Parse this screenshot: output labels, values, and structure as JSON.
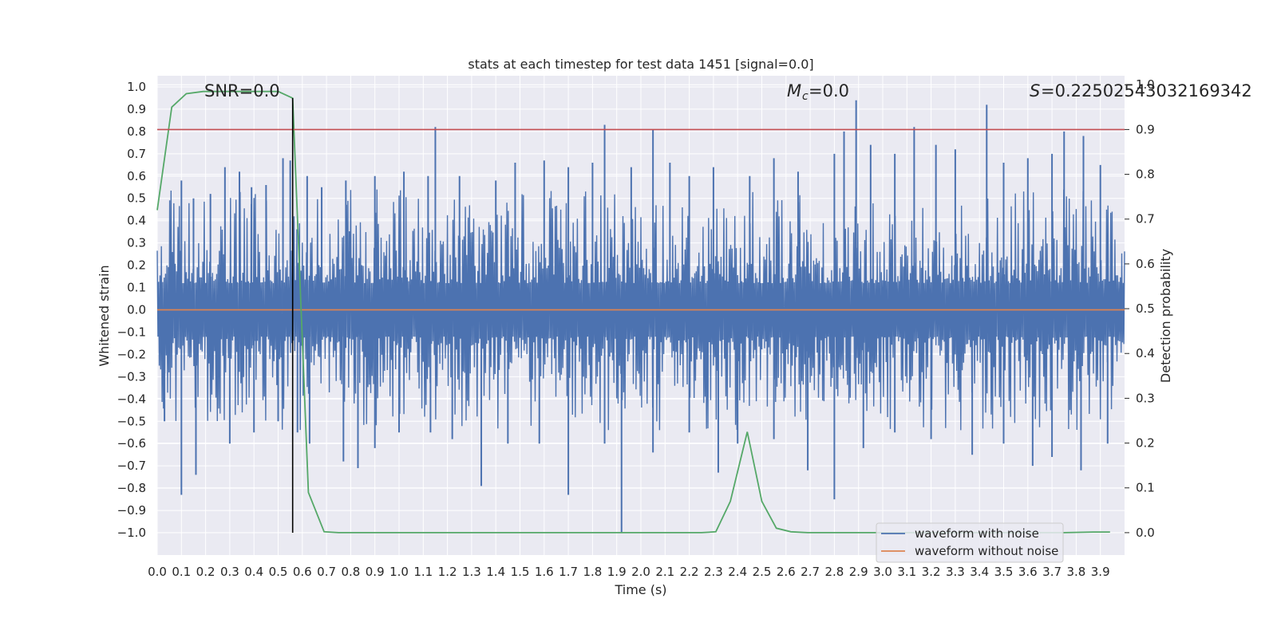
{
  "chart_data": {
    "type": "line",
    "title": "stats at each timestep for test data 1451 [signal=0.0]",
    "xlabel": "Time (s)",
    "ylabel": "Whitened strain",
    "y2label": "Detection probability",
    "xlim": [
      0.0,
      4.0
    ],
    "ylim": [
      -1.1,
      1.05
    ],
    "y2lim": [
      -0.05,
      1.02
    ],
    "grid": true,
    "x_ticks": [
      "0.0",
      "0.1",
      "0.2",
      "0.3",
      "0.4",
      "0.5",
      "0.6",
      "0.7",
      "0.8",
      "0.9",
      "1.0",
      "1.1",
      "1.2",
      "1.3",
      "1.4",
      "1.5",
      "1.6",
      "1.7",
      "1.8",
      "1.9",
      "2.0",
      "2.1",
      "2.2",
      "2.3",
      "2.4",
      "2.5",
      "2.6",
      "2.7",
      "2.8",
      "2.9",
      "3.0",
      "3.1",
      "3.2",
      "3.3",
      "3.4",
      "3.5",
      "3.6",
      "3.7",
      "3.8",
      "3.9"
    ],
    "y_ticks": [
      "1.0",
      "0.9",
      "0.8",
      "0.7",
      "0.6",
      "0.5",
      "0.4",
      "0.3",
      "0.2",
      "0.1",
      "0.0",
      "−0.1",
      "−0.2",
      "−0.3",
      "−0.4",
      "−0.5",
      "−0.6",
      "−0.7",
      "−0.8",
      "−0.9",
      "−1.0"
    ],
    "y2_ticks": [
      "0.0",
      "0.1",
      "0.2",
      "0.3",
      "0.4",
      "0.5",
      "0.6",
      "0.7",
      "0.8",
      "0.9",
      "1.0"
    ],
    "legend": {
      "placement": "lower-right",
      "entries": [
        "waveform with noise",
        "waveform without noise"
      ]
    },
    "annotations": {
      "snr": "SNR=0.0",
      "mc": "=0.0",
      "s": "=0.2250254303216934​2"
    },
    "series": [
      {
        "name": "waveform with noise",
        "axis": "left",
        "style": "noise",
        "color": "#4c72b0",
        "spikes_high": [
          [
            0.1,
            0.58
          ],
          [
            0.15,
            0.5
          ],
          [
            0.22,
            0.52
          ],
          [
            0.28,
            0.64
          ],
          [
            0.34,
            0.62
          ],
          [
            0.39,
            0.55
          ],
          [
            0.45,
            0.56
          ],
          [
            0.52,
            0.68
          ],
          [
            0.55,
            0.67
          ],
          [
            0.62,
            0.6
          ],
          [
            0.68,
            0.55
          ],
          [
            0.78,
            0.58
          ],
          [
            0.9,
            0.6
          ],
          [
            1.02,
            0.62
          ],
          [
            1.12,
            0.6
          ],
          [
            1.15,
            0.82
          ],
          [
            1.25,
            0.6
          ],
          [
            1.4,
            0.58
          ],
          [
            1.48,
            0.66
          ],
          [
            1.6,
            0.67
          ],
          [
            1.7,
            0.64
          ],
          [
            1.8,
            0.66
          ],
          [
            1.85,
            0.83
          ],
          [
            1.96,
            0.64
          ],
          [
            2.05,
            0.81
          ],
          [
            2.12,
            0.66
          ],
          [
            2.2,
            0.6
          ],
          [
            2.3,
            0.64
          ],
          [
            2.45,
            0.6
          ],
          [
            2.55,
            0.68
          ],
          [
            2.65,
            0.62
          ],
          [
            2.8,
            0.7
          ],
          [
            2.84,
            0.8
          ],
          [
            2.89,
            0.94
          ],
          [
            2.95,
            0.74
          ],
          [
            3.05,
            0.7
          ],
          [
            3.13,
            0.82
          ],
          [
            3.22,
            0.74
          ],
          [
            3.3,
            0.72
          ],
          [
            3.43,
            0.92
          ],
          [
            3.5,
            0.66
          ],
          [
            3.6,
            0.68
          ],
          [
            3.7,
            0.7
          ],
          [
            3.75,
            0.8
          ],
          [
            3.83,
            0.78
          ],
          [
            3.9,
            0.65
          ]
        ],
        "spikes_low": [
          [
            0.03,
            -0.5
          ],
          [
            0.1,
            -0.83
          ],
          [
            0.16,
            -0.74
          ],
          [
            0.3,
            -0.6
          ],
          [
            0.4,
            -0.55
          ],
          [
            0.5,
            -0.5
          ],
          [
            0.58,
            -0.55
          ],
          [
            0.63,
            -0.6
          ],
          [
            0.77,
            -0.68
          ],
          [
            0.83,
            -0.71
          ],
          [
            0.9,
            -0.62
          ],
          [
            1.0,
            -0.55
          ],
          [
            1.13,
            -0.55
          ],
          [
            1.22,
            -0.58
          ],
          [
            1.34,
            -0.79
          ],
          [
            1.45,
            -0.6
          ],
          [
            1.58,
            -0.6
          ],
          [
            1.7,
            -0.83
          ],
          [
            1.85,
            -0.6
          ],
          [
            1.92,
            -1.0
          ],
          [
            2.05,
            -0.64
          ],
          [
            2.2,
            -0.55
          ],
          [
            2.32,
            -0.73
          ],
          [
            2.4,
            -0.6
          ],
          [
            2.55,
            -0.58
          ],
          [
            2.69,
            -0.72
          ],
          [
            2.8,
            -0.85
          ],
          [
            2.92,
            -0.62
          ],
          [
            3.05,
            -0.55
          ],
          [
            3.2,
            -0.58
          ],
          [
            3.37,
            -0.65
          ],
          [
            3.5,
            -0.6
          ],
          [
            3.62,
            -0.7
          ],
          [
            3.7,
            -0.66
          ],
          [
            3.82,
            -0.72
          ],
          [
            3.93,
            -0.6
          ]
        ]
      },
      {
        "name": "waveform without noise",
        "axis": "left",
        "color": "#dd8452",
        "x": [
          0.0,
          4.0
        ],
        "y": [
          0.0,
          0.0
        ]
      },
      {
        "name": "",
        "axis": "right",
        "color": "#55a868",
        "x": [
          0.0,
          0.06,
          0.12,
          0.19,
          0.25,
          0.31,
          0.37,
          0.43,
          0.5,
          0.56,
          0.625,
          0.69,
          0.75,
          0.81,
          0.87,
          0.94,
          1.0,
          1.5,
          2.0,
          2.19,
          2.25,
          2.31,
          2.37,
          2.44,
          2.5,
          2.56,
          2.62,
          2.69,
          2.75,
          2.81,
          3.0,
          3.5,
          3.75,
          3.87,
          3.94
        ],
        "y": [
          0.72,
          0.95,
          0.98,
          0.985,
          0.985,
          0.985,
          0.985,
          0.985,
          0.985,
          0.97,
          0.09,
          0.002,
          0.0,
          0.0,
          0.0,
          0.0,
          0.0,
          0.0,
          0.0,
          0.0,
          0.0,
          0.002,
          0.07,
          0.225,
          0.07,
          0.01,
          0.002,
          0.0,
          0.0,
          0.0,
          0.0,
          0.0,
          0.0,
          0.0015,
          0.0015
        ]
      }
    ],
    "reference_lines": [
      {
        "orientation": "horizontal",
        "axis": "right",
        "value": 0.9,
        "color": "#c44e52"
      },
      {
        "orientation": "vertical",
        "value": 0.56,
        "y_from": -1.0,
        "y_to": 0.95,
        "color": "#000000"
      }
    ]
  }
}
